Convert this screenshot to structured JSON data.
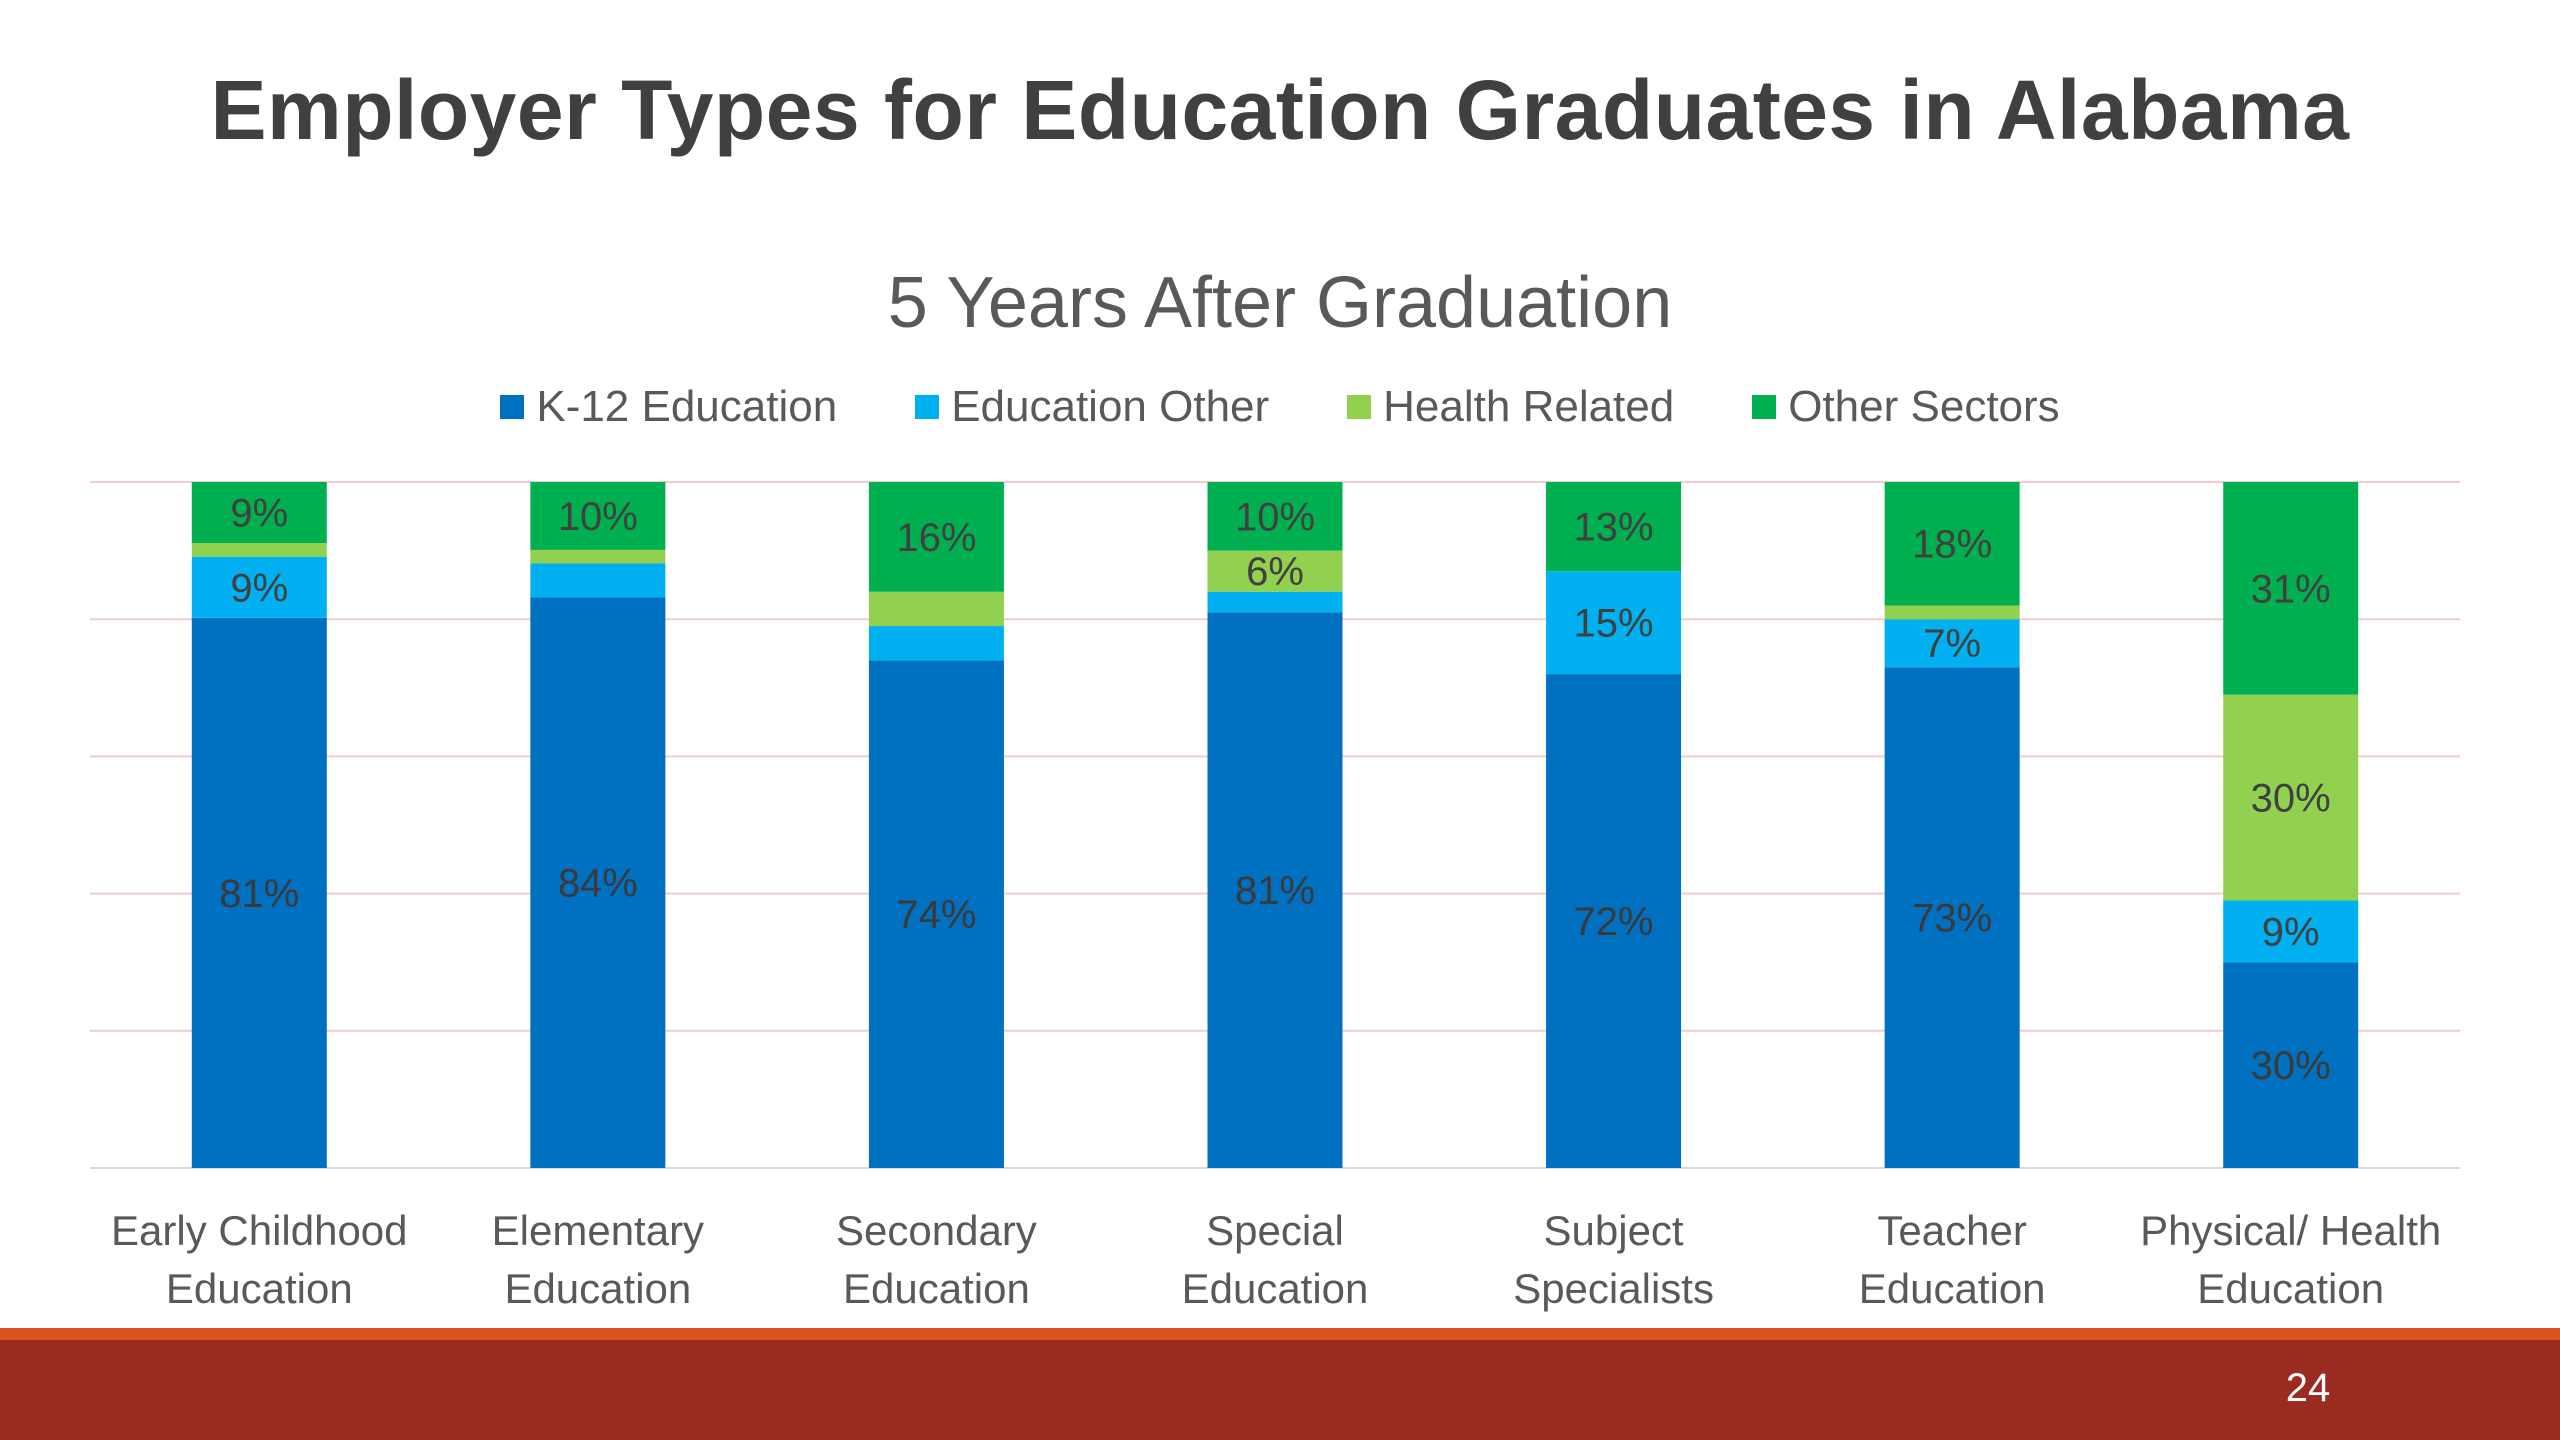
{
  "slide": {
    "title": "Employer Types for Education Graduates in Alabama",
    "page_number": "24"
  },
  "colors": {
    "k12": "#0070c0",
    "education_other": "#00b0f0",
    "health_related": "#92d050",
    "other_sectors": "#00b050",
    "footer_bar": "#9a2b20",
    "footer_stripe": "#d9541e"
  },
  "chart_data": {
    "type": "bar",
    "stacked": true,
    "percent_stacked": true,
    "title": "5 Years After Graduation",
    "xlabel": "",
    "ylabel": "",
    "ylim": [
      0,
      100
    ],
    "grid": true,
    "legend_position": "top",
    "categories": [
      [
        "Early Childhood",
        "Education"
      ],
      [
        "Elementary",
        "Education"
      ],
      [
        "Secondary",
        "Education"
      ],
      [
        "Special",
        "Education"
      ],
      [
        "Subject",
        "Specialists"
      ],
      [
        "Teacher",
        "Education"
      ],
      [
        "Physical/ Health",
        "Education"
      ]
    ],
    "series": [
      {
        "name": "K-12 Education",
        "color": "#0070c0",
        "values": [
          81,
          84,
          74,
          81,
          72,
          73,
          30
        ],
        "labels": [
          "81%",
          "84%",
          "74%",
          "81%",
          "72%",
          "73%",
          "30%"
        ]
      },
      {
        "name": "Education Other",
        "color": "#00b0f0",
        "values": [
          9,
          5,
          5,
          3,
          15,
          7,
          9
        ],
        "labels": [
          "9%",
          "",
          "",
          "",
          "15%",
          "7%",
          "9%"
        ]
      },
      {
        "name": "Health Related",
        "color": "#92d050",
        "values": [
          2,
          2,
          5,
          6,
          0,
          2,
          30
        ],
        "labels": [
          "",
          "",
          "",
          "6%",
          "",
          "",
          "30%"
        ]
      },
      {
        "name": "Other Sectors",
        "color": "#00b050",
        "values": [
          9,
          10,
          16,
          10,
          13,
          18,
          31
        ],
        "labels": [
          "9%",
          "10%",
          "16%",
          "10%",
          "13%",
          "18%",
          "31%"
        ]
      }
    ]
  }
}
